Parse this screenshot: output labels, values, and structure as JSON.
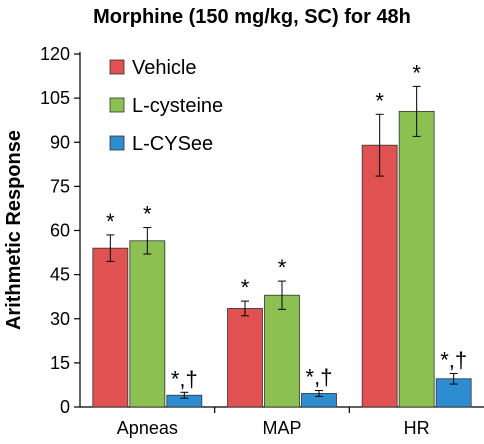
{
  "chart_data": {
    "type": "bar",
    "title": "Morphine (150 mg/kg, SC) for 48h",
    "xlabel": "",
    "ylabel": "Arithmetic Response",
    "ylim": [
      0,
      120
    ],
    "yticks": [
      0,
      15,
      30,
      45,
      60,
      75,
      90,
      105,
      120
    ],
    "categories": [
      "Apneas",
      "MAP",
      "HR"
    ],
    "legend_position": "top-left",
    "grid": false,
    "series": [
      {
        "name": "Vehicle",
        "color": "#e05151",
        "values": [
          54,
          33.5,
          89
        ],
        "errors": [
          4.5,
          2.5,
          10.5
        ],
        "annotations": [
          "*",
          "*",
          "*"
        ]
      },
      {
        "name": "L-cysteine",
        "color": "#8cc152",
        "values": [
          56.5,
          38,
          100.5
        ],
        "errors": [
          4.5,
          4.8,
          8.5
        ],
        "annotations": [
          "*",
          "*",
          "*"
        ]
      },
      {
        "name": "L-CYSee",
        "color": "#2e8dd1",
        "values": [
          4,
          4.6,
          9.6
        ],
        "errors": [
          1,
          1,
          1.8
        ],
        "annotations": [
          "*,†",
          "*,†",
          "*,†"
        ]
      }
    ]
  }
}
